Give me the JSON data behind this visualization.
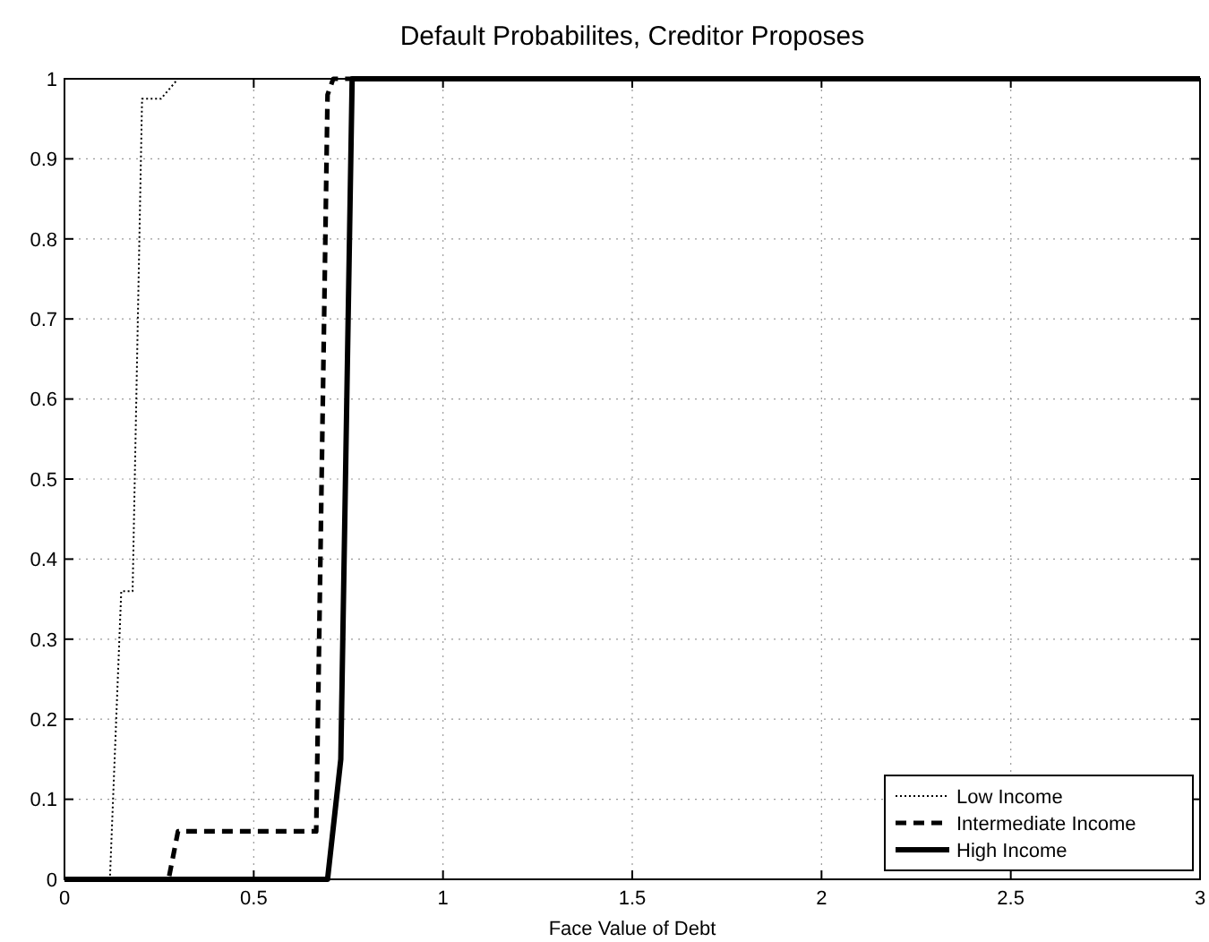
{
  "chart_data": {
    "type": "line",
    "title": "Default Probabilites, Creditor Proposes",
    "xlabel": "Face Value of Debt",
    "series": [
      {
        "name": "Low Income",
        "color": "#000000",
        "line_style": "dotted",
        "x": [
          0,
          0.12,
          0.15,
          0.18,
          0.205,
          0.255,
          0.3,
          3
        ],
        "values": [
          0,
          0,
          0.36,
          0.36,
          0.975,
          0.975,
          1,
          1
        ]
      },
      {
        "name": "Intermediate Income",
        "color": "#000000",
        "line_style": "dashed",
        "x": [
          0,
          0.275,
          0.3,
          0.665,
          0.695,
          0.71,
          3
        ],
        "values": [
          0,
          0,
          0.06,
          0.06,
          0.98,
          1,
          1
        ]
      },
      {
        "name": "High Income",
        "color": "#000000",
        "line_style": "solid",
        "x": [
          0,
          0.695,
          0.73,
          0.76,
          3
        ],
        "values": [
          0,
          0,
          0.15,
          1,
          1
        ]
      }
    ],
    "xlim": [
      0,
      3
    ],
    "ylim": [
      0,
      1
    ],
    "xticks": [
      0,
      0.5,
      1,
      1.5,
      2,
      2.5,
      3
    ],
    "yticks": [
      0,
      0.1,
      0.2,
      0.3,
      0.4,
      0.5,
      0.6,
      0.7,
      0.8,
      0.9,
      1
    ],
    "grid": true,
    "legend": "bottom right"
  }
}
